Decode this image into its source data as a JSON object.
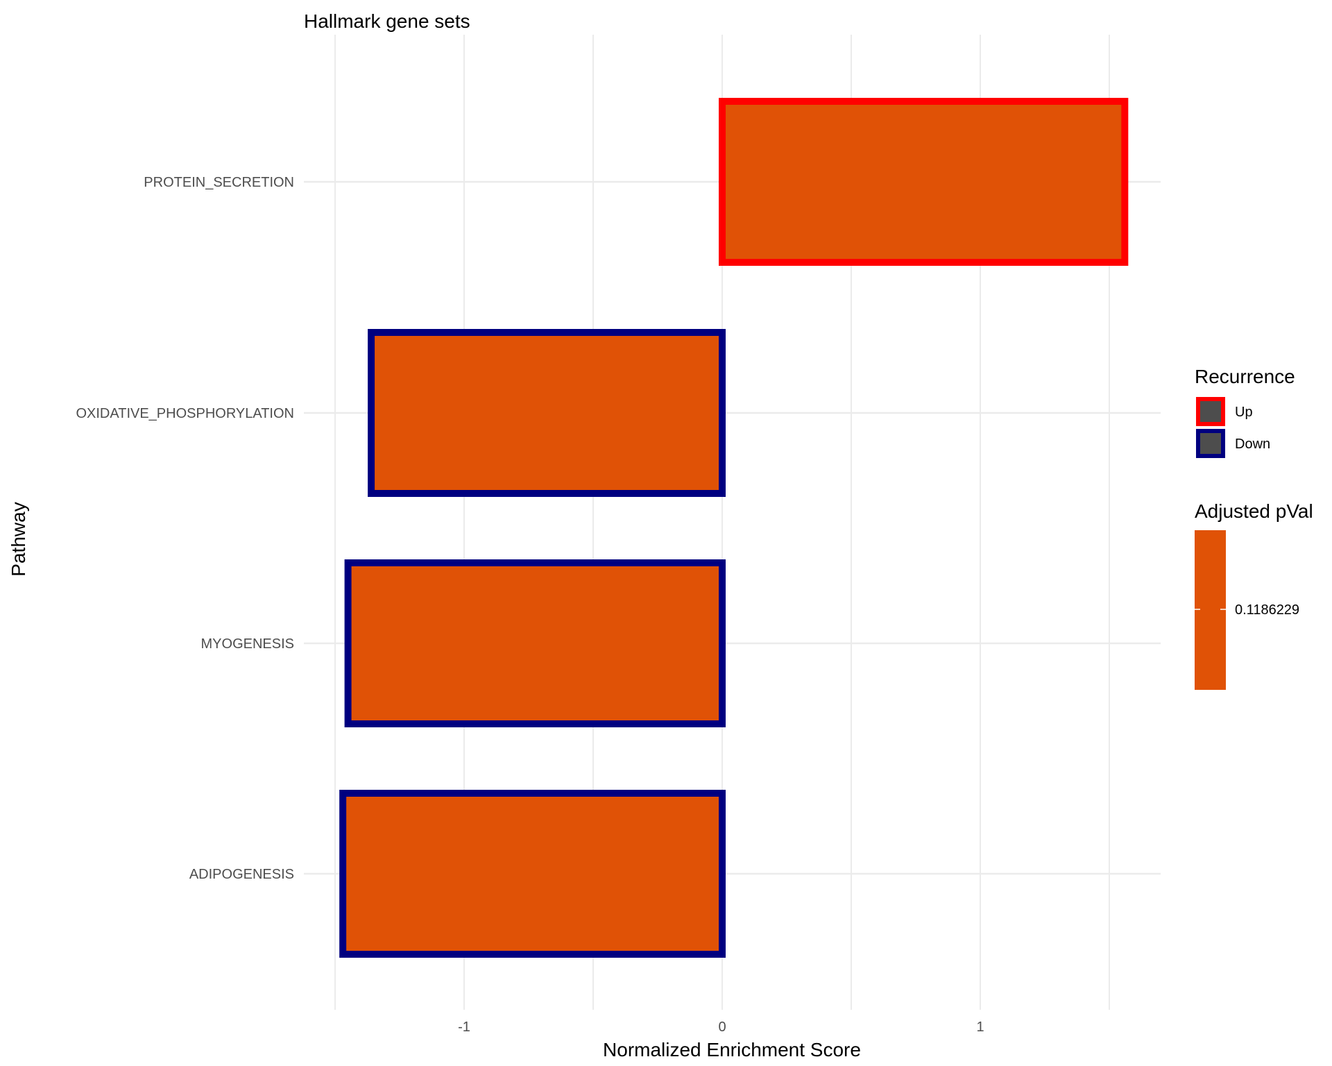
{
  "chart_data": {
    "type": "bar",
    "orientation": "horizontal",
    "title": "Hallmark gene sets",
    "xlabel": "Normalized Enrichment Score",
    "ylabel": "Pathway",
    "categories": [
      "PROTEIN_SECRETION",
      "OXIDATIVE_PHOSPHORYLATION",
      "MYOGENESIS",
      "ADIPOGENESIS"
    ],
    "values": [
      1.56,
      -1.36,
      -1.45,
      -1.47
    ],
    "recurrence": [
      "Up",
      "Down",
      "Down",
      "Down"
    ],
    "xlim": [
      -1.5,
      1.7
    ],
    "xticks": [
      -1,
      0,
      1
    ],
    "xtick_labels": [
      "-1",
      "0",
      "1"
    ],
    "grid": true,
    "fill_color": "#E05206",
    "legend_position": "right",
    "legends": {
      "recurrence": {
        "title": "Recurrence",
        "items": [
          {
            "label": "Up",
            "border_color": "#FF0000"
          },
          {
            "label": "Down",
            "border_color": "#000080"
          }
        ],
        "key_fill": "#4D4D4D"
      },
      "pval": {
        "title": "Adjusted pVal",
        "value_label": "0.1186229",
        "color": "#E05206"
      }
    }
  }
}
